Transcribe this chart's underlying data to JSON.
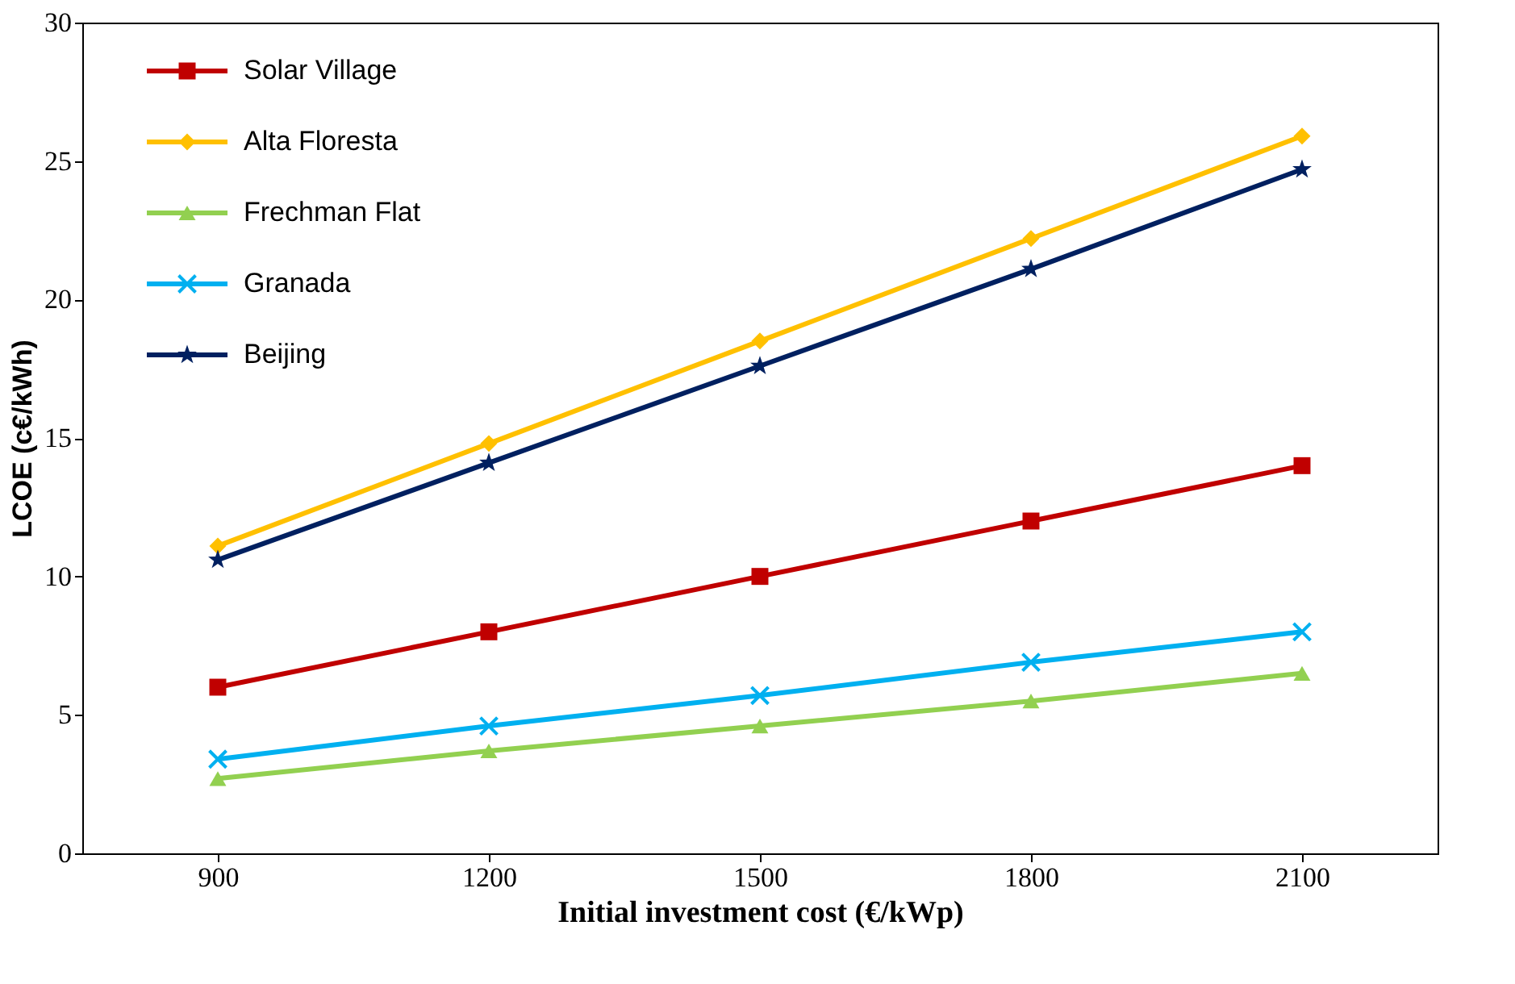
{
  "chart_data": {
    "type": "line",
    "xlabel": "Initial investment cost (€/kWp)",
    "ylabel": "LCOE (c€/kWh)",
    "categories": [
      "900",
      "1200",
      "1500",
      "1800",
      "2100"
    ],
    "ylim": [
      0,
      30
    ],
    "yticks": [
      0,
      5,
      10,
      15,
      20,
      25,
      30
    ],
    "grid": false,
    "legend": "top left",
    "line_style": "solid",
    "series": [
      {
        "name": "Solar Village",
        "color": "#c00000",
        "marker": "square",
        "values": [
          6,
          8,
          10,
          12,
          14
        ]
      },
      {
        "name": "Alta Floresta",
        "color": "#ffc000",
        "marker": "diamond",
        "values": [
          11.1,
          14.8,
          18.5,
          22.2,
          25.9
        ]
      },
      {
        "name": "Frechman Flat",
        "color": "#92d050",
        "marker": "triangle",
        "values": [
          2.7,
          3.7,
          4.6,
          5.5,
          6.5
        ]
      },
      {
        "name": "Granada",
        "color": "#00b0f0",
        "marker": "cross",
        "values": [
          3.4,
          4.6,
          5.7,
          6.9,
          8.0
        ]
      },
      {
        "name": "Beijing",
        "color": "#002060",
        "marker": "star",
        "values": [
          10.6,
          14.1,
          17.6,
          21.1,
          24.7
        ]
      }
    ]
  }
}
